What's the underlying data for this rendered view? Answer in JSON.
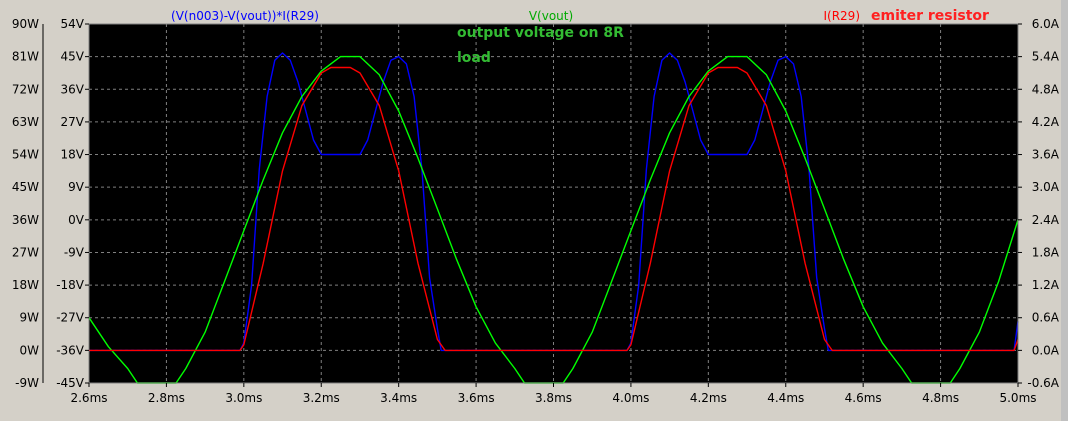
{
  "chart_data": {
    "type": "line",
    "x_unit": "ms",
    "xlim": [
      2.6,
      5.0
    ],
    "x_ticks": [
      2.6,
      2.8,
      3.0,
      3.2,
      3.4,
      3.6,
      3.8,
      4.0,
      4.2,
      4.4,
      4.6,
      4.8,
      5.0
    ],
    "x_tick_labels": [
      "2.6ms",
      "2.8ms",
      "3.0ms",
      "3.2ms",
      "3.4ms",
      "3.6ms",
      "3.8ms",
      "4.0ms",
      "4.2ms",
      "4.4ms",
      "4.6ms",
      "4.8ms",
      "5.0ms"
    ],
    "left_axis_power": {
      "ylim": [
        -9,
        90
      ],
      "tick_values": [
        90,
        81,
        72,
        63,
        54,
        45,
        36,
        27,
        18,
        9,
        0,
        -9
      ],
      "tick_labels": [
        "90W",
        "81W",
        "72W",
        "63W",
        "54W",
        "45W",
        "36W",
        "27W",
        "18W",
        "9W",
        "0W",
        "-9W"
      ]
    },
    "left_axis_voltage": {
      "ylim": [
        -45,
        54
      ],
      "tick_labels": [
        "54V",
        "45V",
        "36V",
        "27V",
        "18V",
        "9V",
        "0V",
        "-9V",
        "-18V",
        "-27V",
        "-36V",
        "-45V"
      ]
    },
    "right_axis_current": {
      "ylim": [
        -0.6,
        6.0
      ],
      "tick_values": [
        6.0,
        5.4,
        4.8,
        4.2,
        3.6,
        3.0,
        2.4,
        1.8,
        1.2,
        0.6,
        0.0,
        -0.6
      ],
      "tick_labels": [
        "6.0A",
        "5.4A",
        "4.8A",
        "4.2A",
        "3.6A",
        "3.0A",
        "2.4A",
        "1.8A",
        "1.2A",
        "0.6A",
        "0.0A",
        "-0.6A"
      ]
    },
    "grid": true,
    "series": [
      {
        "name": "(V(n003)-V(vout))*I(R29)",
        "color": "#0000ff",
        "axis": "power",
        "x": [
          2.6,
          2.99,
          3.0,
          3.02,
          3.04,
          3.06,
          3.08,
          3.1,
          3.12,
          3.14,
          3.16,
          3.18,
          3.2,
          3.25,
          3.3,
          3.32,
          3.34,
          3.36,
          3.38,
          3.4,
          3.42,
          3.44,
          3.46,
          3.48,
          3.5,
          3.51,
          3.99,
          4.0,
          4.02,
          4.04,
          4.06,
          4.08,
          4.1,
          4.12,
          4.14,
          4.16,
          4.18,
          4.2,
          4.25,
          4.3,
          4.32,
          4.34,
          4.36,
          4.38,
          4.4,
          4.42,
          4.44,
          4.46,
          4.48,
          4.5,
          4.51,
          4.99,
          5.0
        ],
        "y": [
          0,
          0,
          2,
          18,
          50,
          70,
          80,
          82,
          80,
          74,
          66,
          58,
          54,
          54,
          54,
          58,
          66,
          74,
          80,
          81,
          79,
          70,
          50,
          20,
          6,
          0,
          0,
          2,
          18,
          50,
          70,
          80,
          82,
          80,
          74,
          66,
          58,
          54,
          54,
          54,
          58,
          66,
          74,
          80,
          81,
          79,
          70,
          50,
          20,
          6,
          0,
          0,
          8
        ]
      },
      {
        "name": "V(vout)",
        "color": "#00ff00",
        "axis": "voltage",
        "x": [
          2.6,
          2.65,
          2.7,
          2.725,
          2.75,
          2.8,
          2.825,
          2.85,
          2.9,
          2.95,
          3.0,
          3.05,
          3.1,
          3.15,
          3.2,
          3.25,
          3.275,
          3.3,
          3.35,
          3.4,
          3.45,
          3.5,
          3.55,
          3.6,
          3.65,
          3.7,
          3.725,
          3.75,
          3.8,
          3.825,
          3.85,
          3.9,
          3.95,
          4.0,
          4.05,
          4.1,
          4.15,
          4.2,
          4.25,
          4.275,
          4.3,
          4.35,
          4.4,
          4.45,
          4.5,
          4.55,
          4.6,
          4.65,
          4.7,
          4.725,
          4.75,
          4.8,
          4.825,
          4.85,
          4.9,
          4.95,
          5.0
        ],
        "y": [
          -27,
          -35,
          -41,
          -45,
          -45,
          -45,
          -45,
          -41,
          -31,
          -17,
          -3,
          11,
          24,
          34,
          41,
          45,
          45,
          45,
          40,
          30,
          17,
          3,
          -11,
          -24,
          -34,
          -41,
          -45,
          -45,
          -45,
          -45,
          -41,
          -31,
          -17,
          -3,
          11,
          24,
          34,
          41,
          45,
          45,
          45,
          40,
          30,
          17,
          3,
          -11,
          -24,
          -34,
          -41,
          -45,
          -45,
          -45,
          -45,
          -41,
          -31,
          -17,
          0
        ]
      },
      {
        "name": "I(R29)",
        "color": "#ff0000",
        "axis": "current",
        "x": [
          2.6,
          2.99,
          3.0,
          3.05,
          3.1,
          3.15,
          3.2,
          3.225,
          3.25,
          3.275,
          3.3,
          3.35,
          3.4,
          3.45,
          3.5,
          3.52,
          3.99,
          4.0,
          4.05,
          4.1,
          4.15,
          4.2,
          4.225,
          4.25,
          4.275,
          4.3,
          4.35,
          4.4,
          4.45,
          4.5,
          4.52,
          4.99,
          5.0
        ],
        "y": [
          0,
          0,
          0.1,
          1.6,
          3.3,
          4.5,
          5.1,
          5.2,
          5.2,
          5.2,
          5.1,
          4.5,
          3.3,
          1.6,
          0.2,
          0,
          0,
          0.1,
          1.6,
          3.3,
          4.5,
          5.1,
          5.2,
          5.2,
          5.2,
          5.1,
          4.5,
          3.3,
          1.6,
          0.2,
          0,
          0,
          0.2
        ]
      }
    ],
    "annotations": [
      {
        "text": "output voltage on 8R",
        "color": "#33bb33"
      },
      {
        "text": "load",
        "color": "#33bb33"
      },
      {
        "text": "emiter resistor",
        "color": "#ff2020"
      }
    ]
  }
}
